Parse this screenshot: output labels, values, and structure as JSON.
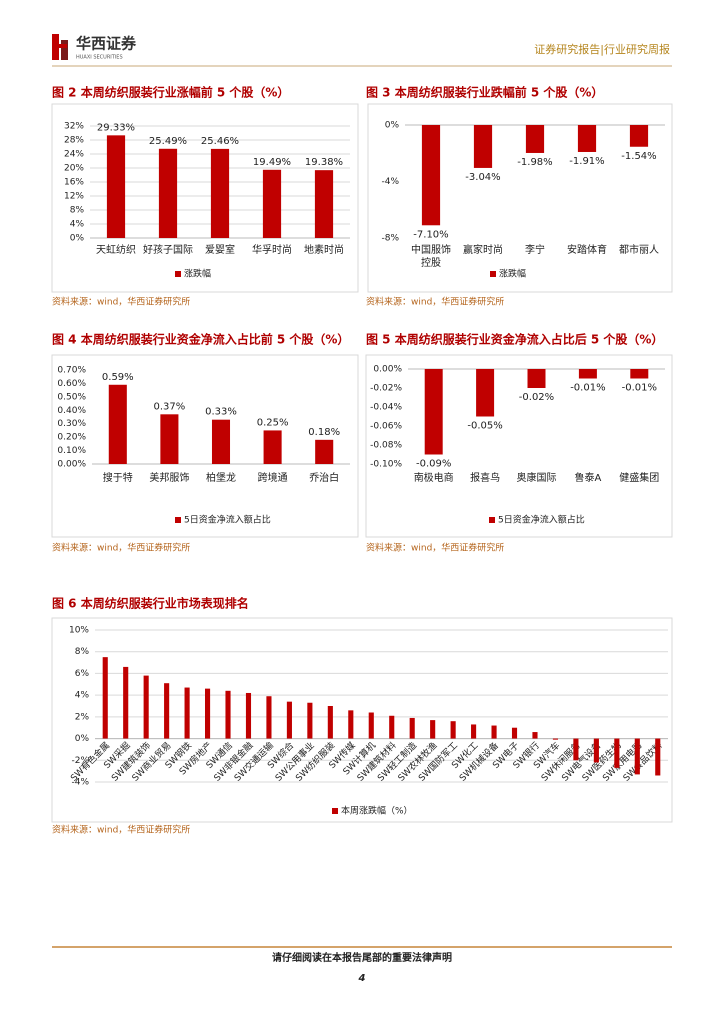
{
  "header": {
    "brand": "华西证券",
    "brand_en": "HUAXI SECURITIES",
    "report_type": "证券研究报告|行业研究周报"
  },
  "footer": {
    "notice": "请仔细阅读在本报告尾部的重要法律声明",
    "page": "4"
  },
  "chart_data": [
    {
      "type": "bar",
      "title": "图 2 本周纺织服装行业涨幅前 5 个股（%）",
      "source": "资料来源：wind，华西证券研究所",
      "categories": [
        "天虹纺织",
        "好孩子国际",
        "爱婴室",
        "华孚时尚",
        "地素时尚"
      ],
      "series": [
        {
          "name": "涨跌幅",
          "color": "#c00000",
          "values": [
            29.33,
            25.49,
            25.46,
            19.49,
            19.38
          ],
          "value_labels": [
            "29.33%",
            "25.49%",
            "25.46%",
            "19.49%",
            "19.38%"
          ]
        }
      ],
      "ylim": [
        0,
        32
      ],
      "yticks": [
        {
          "value": 0,
          "label": "0%"
        },
        {
          "value": 4,
          "label": "4%"
        },
        {
          "value": 8,
          "label": "8%"
        },
        {
          "value": 12,
          "label": "12%"
        },
        {
          "value": 16,
          "label": "16%"
        },
        {
          "value": 20,
          "label": "20%"
        },
        {
          "value": 24,
          "label": "24%"
        },
        {
          "value": 28,
          "label": "28%"
        },
        {
          "value": 32,
          "label": "32%"
        }
      ],
      "grid": true,
      "legend": "bottom"
    },
    {
      "type": "bar",
      "title": "图 3 本周纺织服装行业跌幅前 5 个股（%）",
      "source": "资料来源：wind，华西证券研究所",
      "categories": [
        "中国服饰控股",
        "赢家时尚",
        "李宁",
        "安踏体育",
        "都市丽人"
      ],
      "series": [
        {
          "name": "涨跌幅",
          "color": "#c00000",
          "values": [
            -7.1,
            -3.04,
            -1.98,
            -1.91,
            -1.54
          ],
          "value_labels": [
            "-7.10%",
            "-3.04%",
            "-1.98%",
            "-1.91%",
            "-1.54%"
          ]
        }
      ],
      "ylim": [
        -8,
        0
      ],
      "yticks": [
        {
          "value": 0,
          "label": "0%"
        },
        {
          "value": -4,
          "label": "-4%"
        },
        {
          "value": -8,
          "label": "-8%"
        }
      ],
      "grid": false,
      "legend": "bottom"
    },
    {
      "type": "bar",
      "title": "图 4 本周纺织服装行业资金净流入占比前 5 个股（%）",
      "source": "资料来源：wind，华西证券研究所",
      "categories": [
        "搜于特",
        "美邦服饰",
        "柏堡龙",
        "跨境通",
        "乔治白"
      ],
      "series": [
        {
          "name": "5日资金净流入额占比",
          "color": "#c00000",
          "values": [
            0.59,
            0.37,
            0.33,
            0.25,
            0.18
          ],
          "value_labels": [
            "0.59%",
            "0.37%",
            "0.33%",
            "0.25%",
            "0.18%"
          ]
        }
      ],
      "ylim": [
        0,
        0.7
      ],
      "yticks": [
        {
          "value": 0,
          "label": "0.00%"
        },
        {
          "value": 0.1,
          "label": "0.10%"
        },
        {
          "value": 0.2,
          "label": "0.20%"
        },
        {
          "value": 0.3,
          "label": "0.30%"
        },
        {
          "value": 0.4,
          "label": "0.40%"
        },
        {
          "value": 0.5,
          "label": "0.50%"
        },
        {
          "value": 0.6,
          "label": "0.60%"
        },
        {
          "value": 0.7,
          "label": "0.70%"
        }
      ],
      "grid": false,
      "legend": "bottom"
    },
    {
      "type": "bar",
      "title": "图 5 本周纺织服装行业资金净流入占比后 5 个股（%）",
      "source": "资料来源：wind，华西证券研究所",
      "categories": [
        "南极电商",
        "报喜鸟",
        "奥康国际",
        "鲁泰A",
        "健盛集团"
      ],
      "series": [
        {
          "name": "5日资金净流入额占比",
          "color": "#c00000",
          "values": [
            -0.09,
            -0.05,
            -0.02,
            -0.01,
            -0.01
          ],
          "value_labels": [
            "-0.09%",
            "-0.05%",
            "-0.02%",
            "-0.01%",
            "-0.01%"
          ]
        }
      ],
      "ylim": [
        -0.1,
        0
      ],
      "yticks": [
        {
          "value": 0,
          "label": "0.00%"
        },
        {
          "value": -0.02,
          "label": "-0.02%"
        },
        {
          "value": -0.04,
          "label": "-0.04%"
        },
        {
          "value": -0.06,
          "label": "-0.06%"
        },
        {
          "value": -0.08,
          "label": "-0.08%"
        },
        {
          "value": -0.1,
          "label": "-0.10%"
        }
      ],
      "grid": false,
      "legend": "bottom"
    },
    {
      "type": "bar",
      "title": "图 6 本周纺织服装行业市场表现排名",
      "source": "资料来源：wind，华西证券研究所",
      "categories": [
        "SW有色金属",
        "SW采掘",
        "SW建筑装饰",
        "SW商业贸易",
        "SW钢铁",
        "SW房地产",
        "SW通信",
        "SW非银金融",
        "SW交通运输",
        "SW综合",
        "SW公用事业",
        "SW纺织服装",
        "SW传媒",
        "SW计算机",
        "SW建筑材料",
        "SW轻工制造",
        "SW农林牧渔",
        "SW国防军工",
        "SW化工",
        "SW机械设备",
        "SW电子",
        "SW银行",
        "SW汽车",
        "SW休闲服务",
        "SW电气设备",
        "SW医药生物",
        "SW家用电器",
        "SW食品饮料"
      ],
      "series": [
        {
          "name": "本周涨跌幅（%）",
          "color": "#c00000",
          "values": [
            7.5,
            6.6,
            5.8,
            5.1,
            4.7,
            4.6,
            4.4,
            4.2,
            3.9,
            3.4,
            3.3,
            3.0,
            2.6,
            2.4,
            2.1,
            1.9,
            1.7,
            1.6,
            1.3,
            1.2,
            1.0,
            0.6,
            -0.1,
            -2.0,
            -2.2,
            -2.7,
            -3.3,
            -3.4
          ]
        }
      ],
      "ylim": [
        -4,
        10
      ],
      "yticks": [
        {
          "value": -4,
          "label": "-4%"
        },
        {
          "value": -2,
          "label": "-2%"
        },
        {
          "value": 0,
          "label": "0%"
        },
        {
          "value": 2,
          "label": "2%"
        },
        {
          "value": 4,
          "label": "4%"
        },
        {
          "value": 6,
          "label": "6%"
        },
        {
          "value": 8,
          "label": "8%"
        },
        {
          "value": 10,
          "label": "10%"
        }
      ],
      "grid": true,
      "legend": "bottom"
    }
  ]
}
